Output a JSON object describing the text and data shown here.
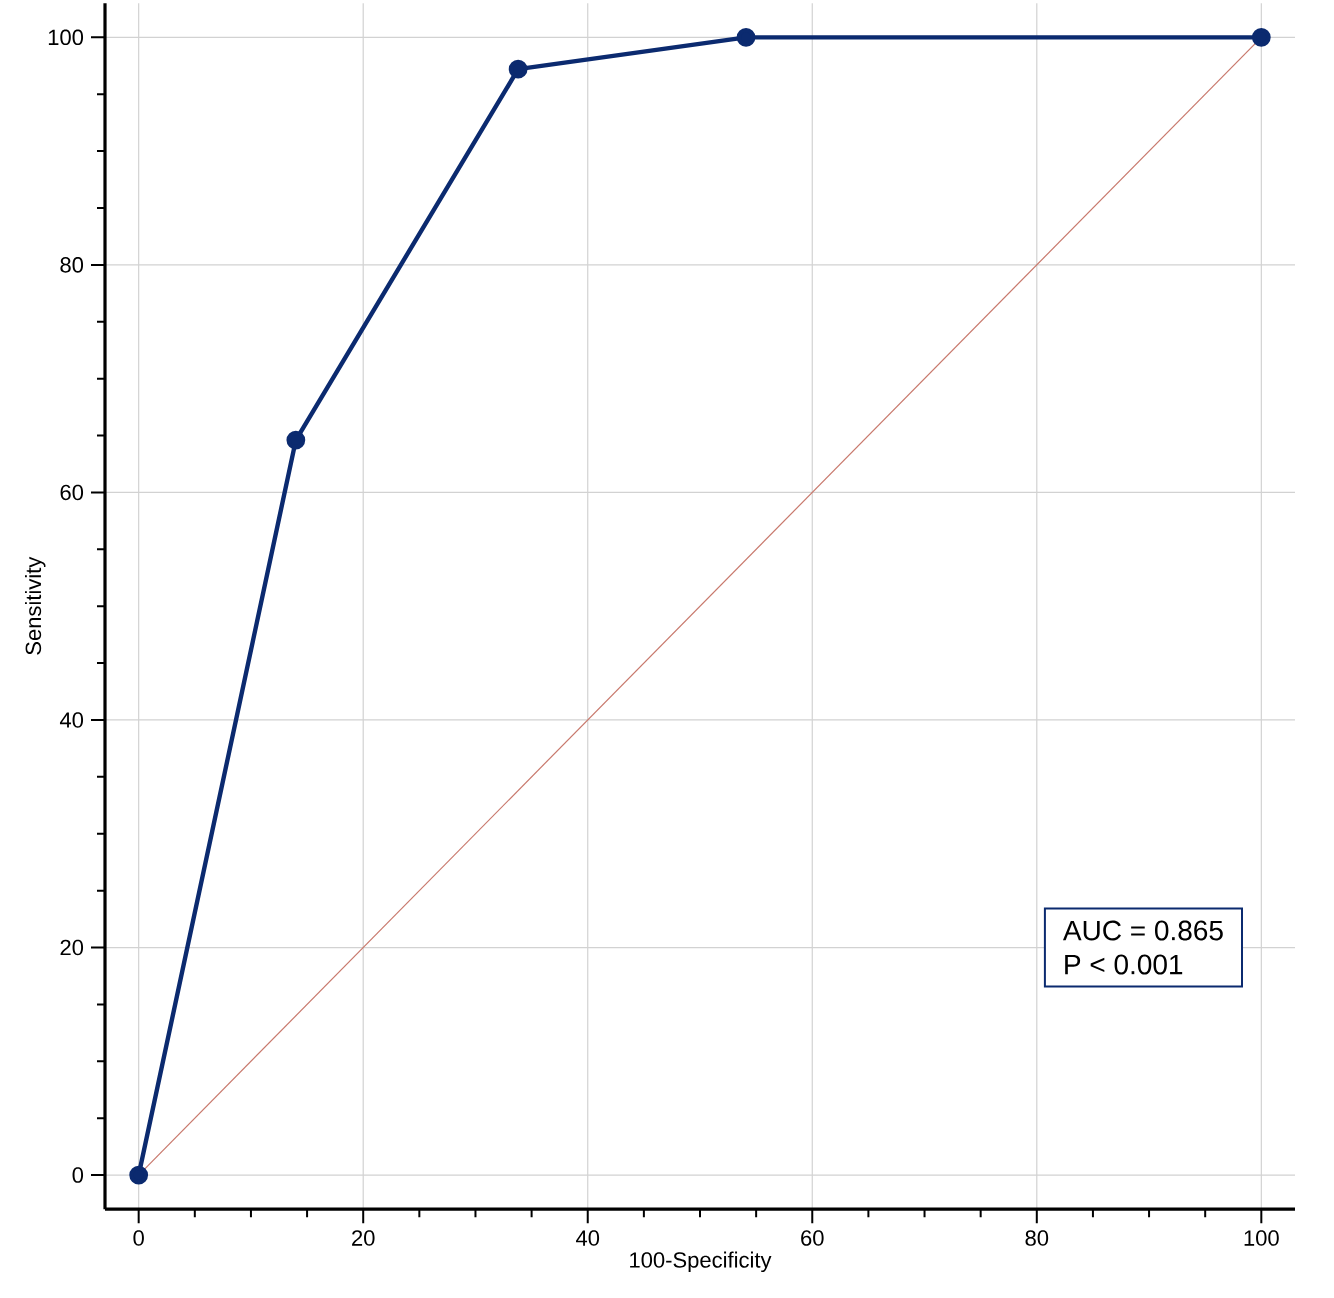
{
  "chart_data": {
    "type": "line",
    "xlabel": "100-Specificity",
    "ylabel": "Sensitivity",
    "xlim": [
      -3,
      103
    ],
    "ylim": [
      -3,
      103
    ],
    "xticks": [
      0,
      20,
      40,
      60,
      80,
      100
    ],
    "yticks": [
      0,
      20,
      40,
      60,
      80,
      100
    ],
    "grid": true,
    "marker": "circle",
    "line_style": "solid",
    "series": [
      {
        "color": "#0b2a6f",
        "x": [
          0,
          14,
          33.8,
          54.1,
          100
        ],
        "values": [
          0,
          64.6,
          97.2,
          100,
          100
        ]
      },
      {
        "color": "#c8786c",
        "x": [
          0,
          100
        ],
        "values": [
          0,
          100
        ],
        "marker": "none"
      }
    ],
    "annotations": [
      "AUC = 0.865",
      "P < 0.001"
    ]
  }
}
